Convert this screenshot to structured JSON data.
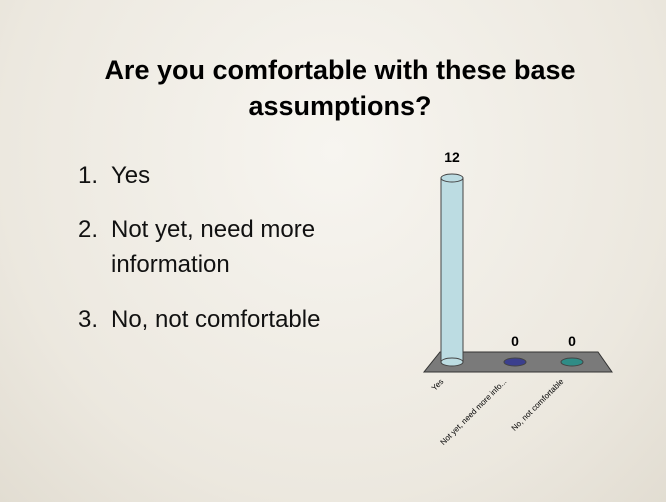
{
  "title": "Are you comfortable with these base assumptions?",
  "list": [
    {
      "number": "1.",
      "text": "Yes"
    },
    {
      "number": "2.",
      "text": "Not yet, need more information"
    },
    {
      "number": "3.",
      "text": "No, not comfortable"
    }
  ],
  "chart_data": {
    "type": "bar3d",
    "categories": [
      "Yes",
      "Not yet, need more info...",
      "No, not comfortable"
    ],
    "values": [
      12,
      0,
      0
    ],
    "colors": [
      "#bcdce2",
      "#3b3f8e",
      "#2f8c86"
    ]
  }
}
